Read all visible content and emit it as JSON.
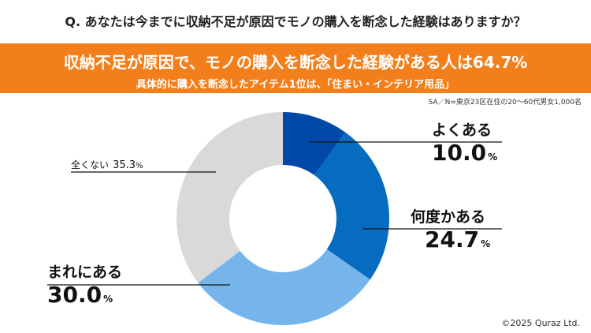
{
  "question": "Q. あなたは今までに収納不足が原因でモノの購入を断念した経験はありますか？",
  "headline": "収納不足が原因で、モノの購入を断念した経験がある人は64.7%",
  "subline": "具体的に購入を断念したアイテム1位は、「住まい・インテリア用品」",
  "note": "SA／N=東京23区在住の20～60代男女1,000名",
  "copyright": "©2025 Quraz Ltd.",
  "chart_data": {
    "type": "pie",
    "donut": true,
    "categories": [
      "よくある",
      "何度かある",
      "まれにある",
      "全くない"
    ],
    "values": [
      10.0,
      24.7,
      30.0,
      35.3
    ],
    "value_labels": [
      "10.0",
      "24.7",
      "30.0",
      "35.3"
    ],
    "unit": "%",
    "colors": [
      "#0049a8",
      "#056cc0",
      "#75b5ec",
      "#d9d9d9"
    ]
  }
}
